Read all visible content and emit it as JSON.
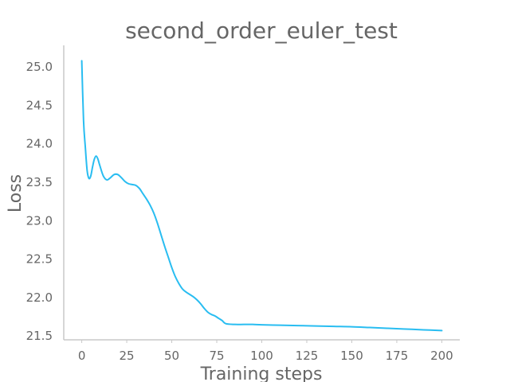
{
  "chart_data": {
    "type": "line",
    "title": "second_order_euler_test",
    "xlabel": "Training steps",
    "ylabel": "Loss",
    "xlim": [
      -10,
      210
    ],
    "ylim": [
      21.45,
      25.28
    ],
    "xticks": [
      0,
      25,
      50,
      75,
      100,
      125,
      150,
      175,
      200
    ],
    "yticks": [
      21.5,
      22.0,
      22.5,
      23.0,
      23.5,
      24.0,
      24.5,
      25.0
    ],
    "ytick_labels": [
      "21.5",
      "22.0",
      "22.5",
      "23.0",
      "23.5",
      "24.0",
      "24.5",
      "25.0"
    ],
    "grid": false,
    "series": [
      {
        "color": "#29bdf1",
        "x": [
          0,
          1,
          2,
          3,
          4,
          5,
          6,
          7,
          8,
          9,
          10,
          12,
          14,
          16,
          18,
          20,
          22,
          24,
          26,
          28,
          30,
          32,
          34,
          36,
          38,
          40,
          42,
          44,
          46,
          48,
          50,
          52,
          54,
          56,
          58,
          60,
          62,
          64,
          66,
          68,
          70,
          72,
          74,
          76,
          78,
          80,
          85,
          90,
          95,
          100,
          110,
          120,
          130,
          140,
          150,
          160,
          170,
          180,
          190,
          200
        ],
        "y": [
          25.08,
          24.3,
          23.95,
          23.65,
          23.55,
          23.58,
          23.7,
          23.8,
          23.84,
          23.8,
          23.72,
          23.58,
          23.53,
          23.56,
          23.6,
          23.6,
          23.56,
          23.51,
          23.48,
          23.47,
          23.46,
          23.42,
          23.35,
          23.28,
          23.2,
          23.1,
          22.97,
          22.82,
          22.67,
          22.53,
          22.39,
          22.27,
          22.18,
          22.11,
          22.07,
          22.04,
          22.01,
          21.97,
          21.92,
          21.86,
          21.81,
          21.78,
          21.76,
          21.73,
          21.7,
          21.66,
          21.65,
          21.65,
          21.65,
          21.645,
          21.64,
          21.635,
          21.63,
          21.625,
          21.62,
          21.61,
          21.6,
          21.59,
          21.58,
          21.57
        ]
      }
    ]
  }
}
